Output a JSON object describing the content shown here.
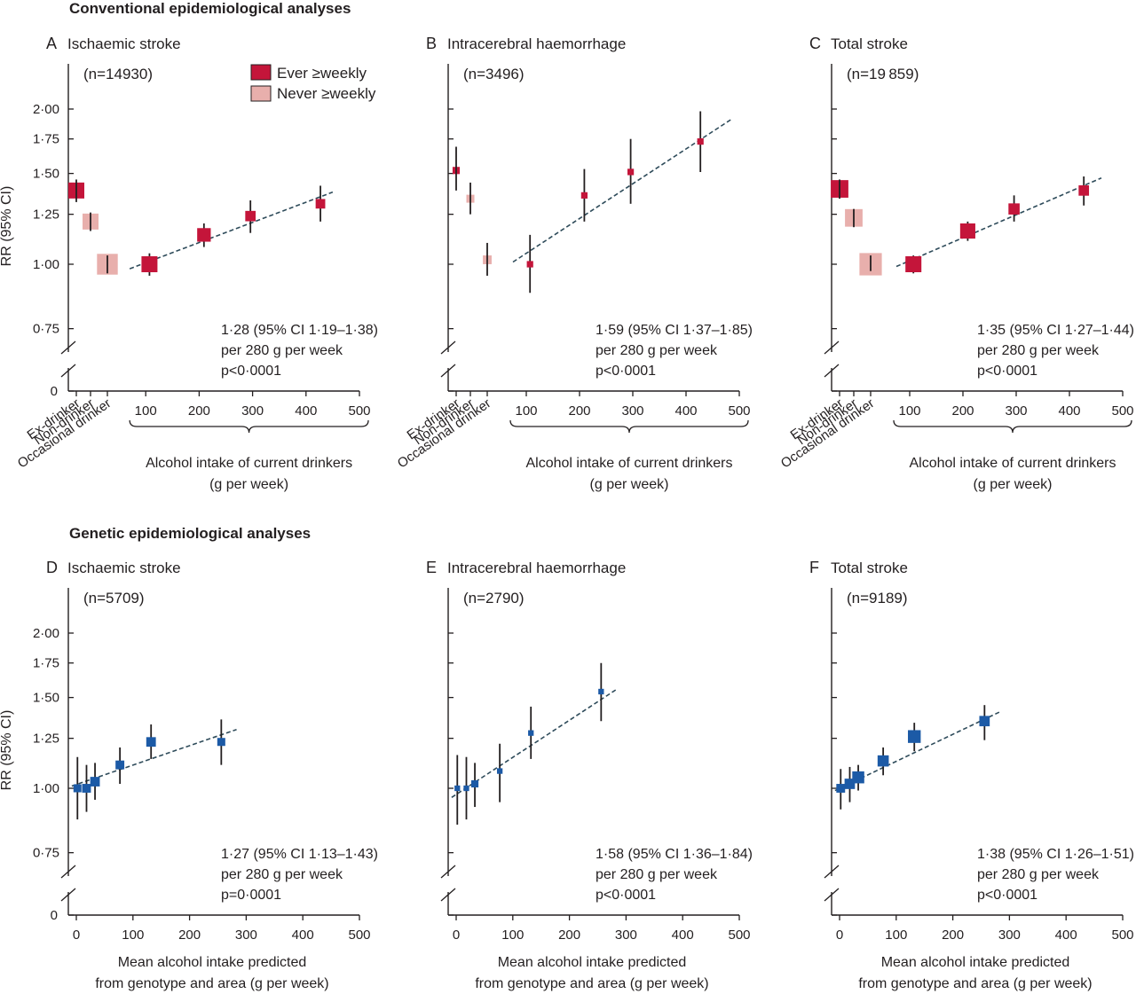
{
  "sections": {
    "top": "Conventional epidemiological analyses",
    "bottom": "Genetic epidemiological analyses"
  },
  "colors": {
    "ever": "#c4153a",
    "never": "#e8afac",
    "genetic": "#1c5aa6",
    "trend": "#2e4b5a",
    "axis": "#231f20"
  },
  "legend": {
    "ever": "Ever ≥weekly",
    "never": "Never ≥weekly"
  },
  "labels": {
    "ylabel": "RR (95% CI)",
    "y_ticks": [
      "2·00",
      "1·75",
      "1·50",
      "1·25",
      "1·00",
      "0·75",
      "0"
    ],
    "x_ticks": [
      "100",
      "200",
      "300",
      "400",
      "500"
    ],
    "x_ticks_gen": [
      "0",
      "100",
      "200",
      "300",
      "400",
      "500"
    ],
    "categories": [
      "Ex-drinker",
      "Non-drinker",
      "Occasional drinker"
    ],
    "xlabel_conv": [
      "Alcohol intake of current drinkers",
      "(g per week)"
    ],
    "xlabel_gen": [
      "Mean alcohol intake predicted",
      "from genotype and area (g per week)"
    ]
  },
  "chart_data": [
    {
      "panel": "A",
      "title": "Ischaemic stroke",
      "n": "(n=14930)",
      "type": "scatter",
      "ylim": [
        0.75,
        2.0
      ],
      "y_scale": "log",
      "xlim": [
        0,
        500
      ],
      "categories": [
        {
          "name": "Ex-drinker",
          "group": "ever",
          "rr": 1.39,
          "lo": 1.32,
          "hi": 1.46,
          "size": 1.0
        },
        {
          "name": "Non-drinker",
          "group": "never",
          "rr": 1.21,
          "lo": 1.16,
          "hi": 1.26,
          "size": 1.0
        },
        {
          "name": "Occasional drinker",
          "group": "never",
          "rr": 1.0,
          "lo": 0.96,
          "hi": 1.04,
          "size": 1.3
        }
      ],
      "points": [
        {
          "x": 107,
          "rr": 1.0,
          "lo": 0.95,
          "hi": 1.05,
          "size": 1.0
        },
        {
          "x": 209,
          "rr": 1.14,
          "lo": 1.08,
          "hi": 1.2,
          "size": 0.85
        },
        {
          "x": 296,
          "rr": 1.24,
          "lo": 1.15,
          "hi": 1.33,
          "size": 0.65
        },
        {
          "x": 427,
          "rr": 1.31,
          "lo": 1.21,
          "hi": 1.42,
          "size": 0.6
        }
      ],
      "trend": {
        "x": [
          70,
          450
        ],
        "rr": [
          0.98,
          1.38
        ]
      },
      "annotation": [
        "1·28 (95% CI 1·19–1·38)",
        "per 280 g per week",
        "p<0·0001"
      ]
    },
    {
      "panel": "B",
      "title": "Intracerebral haemorrhage",
      "n": "(n=3496)",
      "type": "scatter",
      "ylim": [
        0.75,
        2.0
      ],
      "y_scale": "log",
      "xlim": [
        0,
        500
      ],
      "categories": [
        {
          "name": "Ex-drinker",
          "group": "ever",
          "rr": 1.52,
          "lo": 1.39,
          "hi": 1.69,
          "size": 0.45
        },
        {
          "name": "Non-drinker",
          "group": "never",
          "rr": 1.34,
          "lo": 1.25,
          "hi": 1.44,
          "size": 0.5
        },
        {
          "name": "Occasional drinker",
          "group": "never",
          "rr": 1.02,
          "lo": 0.95,
          "hi": 1.1,
          "size": 0.55
        }
      ],
      "points": [
        {
          "x": 107,
          "rr": 1.0,
          "lo": 0.88,
          "hi": 1.14,
          "size": 0.4
        },
        {
          "x": 209,
          "rr": 1.36,
          "lo": 1.21,
          "hi": 1.53,
          "size": 0.4
        },
        {
          "x": 296,
          "rr": 1.51,
          "lo": 1.31,
          "hi": 1.75,
          "size": 0.4
        },
        {
          "x": 427,
          "rr": 1.73,
          "lo": 1.51,
          "hi": 1.98,
          "size": 0.4
        }
      ],
      "trend": {
        "x": [
          75,
          485
        ],
        "rr": [
          1.01,
          1.91
        ]
      },
      "annotation": [
        "1·59 (95% CI 1·37–1·85)",
        "per 280 g per week",
        "p<0·0001"
      ]
    },
    {
      "panel": "C",
      "title": "Total stroke",
      "n": "(n=19 859)",
      "type": "scatter",
      "ylim": [
        0.75,
        2.0
      ],
      "y_scale": "log",
      "xlim": [
        0,
        500
      ],
      "categories": [
        {
          "name": "Ex-drinker",
          "group": "ever",
          "rr": 1.4,
          "lo": 1.34,
          "hi": 1.46,
          "size": 1.1
        },
        {
          "name": "Non-drinker",
          "group": "never",
          "rr": 1.23,
          "lo": 1.18,
          "hi": 1.28,
          "size": 1.1
        },
        {
          "name": "Occasional drinker",
          "group": "never",
          "rr": 1.0,
          "lo": 0.97,
          "hi": 1.04,
          "size": 1.4
        }
      ],
      "points": [
        {
          "x": 107,
          "rr": 1.0,
          "lo": 0.96,
          "hi": 1.04,
          "size": 1.0
        },
        {
          "x": 209,
          "rr": 1.16,
          "lo": 1.11,
          "hi": 1.21,
          "size": 0.95
        },
        {
          "x": 296,
          "rr": 1.28,
          "lo": 1.21,
          "hi": 1.36,
          "size": 0.7
        },
        {
          "x": 427,
          "rr": 1.39,
          "lo": 1.3,
          "hi": 1.48,
          "size": 0.65
        }
      ],
      "trend": {
        "x": [
          75,
          460
        ],
        "rr": [
          0.99,
          1.47
        ]
      },
      "annotation": [
        "1·35 (95% CI 1·27–1·44)",
        "per 280 g per week",
        "p<0·0001"
      ]
    },
    {
      "panel": "D",
      "title": "Ischaemic stroke",
      "n": "(n=5709)",
      "type": "scatter",
      "ylim": [
        0.75,
        2.0
      ],
      "y_scale": "log",
      "xlim": [
        0,
        500
      ],
      "points": [
        {
          "x": 2,
          "rr": 1.0,
          "lo": 0.87,
          "hi": 1.15,
          "size": 0.5
        },
        {
          "x": 18,
          "rr": 1.0,
          "lo": 0.9,
          "hi": 1.11,
          "size": 0.55
        },
        {
          "x": 33,
          "rr": 1.03,
          "lo": 0.95,
          "hi": 1.12,
          "size": 0.6
        },
        {
          "x": 77,
          "rr": 1.11,
          "lo": 1.02,
          "hi": 1.2,
          "size": 0.55
        },
        {
          "x": 132,
          "rr": 1.23,
          "lo": 1.14,
          "hi": 1.33,
          "size": 0.6
        },
        {
          "x": 256,
          "rr": 1.23,
          "lo": 1.11,
          "hi": 1.36,
          "size": 0.5
        }
      ],
      "trend": {
        "x": [
          -8,
          283
        ],
        "rr": [
          1.01,
          1.3
        ]
      },
      "annotation": [
        "1·27 (95% CI 1·13–1·43)",
        "per 280 g per week",
        "p=0·0001"
      ]
    },
    {
      "panel": "E",
      "title": "Intracerebral haemorrhage",
      "n": "(n=2790)",
      "type": "scatter",
      "ylim": [
        0.75,
        2.0
      ],
      "y_scale": "log",
      "xlim": [
        0,
        500
      ],
      "points": [
        {
          "x": 2,
          "rr": 1.0,
          "lo": 0.85,
          "hi": 1.16,
          "size": 0.35
        },
        {
          "x": 18,
          "rr": 1.0,
          "lo": 0.87,
          "hi": 1.15,
          "size": 0.35
        },
        {
          "x": 33,
          "rr": 1.02,
          "lo": 0.92,
          "hi": 1.12,
          "size": 0.45
        },
        {
          "x": 77,
          "rr": 1.08,
          "lo": 0.94,
          "hi": 1.22,
          "size": 0.35
        },
        {
          "x": 132,
          "rr": 1.28,
          "lo": 1.14,
          "hi": 1.44,
          "size": 0.35
        },
        {
          "x": 256,
          "rr": 1.54,
          "lo": 1.35,
          "hi": 1.75,
          "size": 0.35
        }
      ],
      "trend": {
        "x": [
          -8,
          285
        ],
        "rr": [
          0.96,
          1.56
        ]
      },
      "annotation": [
        "1·58 (95% CI 1·36–1·84)",
        "per 280 g per week",
        "p<0·0001"
      ]
    },
    {
      "panel": "F",
      "title": "Total stroke",
      "n": "(n=9189)",
      "type": "scatter",
      "ylim": [
        0.75,
        2.0
      ],
      "y_scale": "log",
      "xlim": [
        0,
        500
      ],
      "points": [
        {
          "x": 2,
          "rr": 1.0,
          "lo": 0.91,
          "hi": 1.09,
          "size": 0.55
        },
        {
          "x": 18,
          "rr": 1.02,
          "lo": 0.94,
          "hi": 1.1,
          "size": 0.65
        },
        {
          "x": 33,
          "rr": 1.05,
          "lo": 0.99,
          "hi": 1.11,
          "size": 0.75
        },
        {
          "x": 77,
          "rr": 1.13,
          "lo": 1.06,
          "hi": 1.2,
          "size": 0.7
        },
        {
          "x": 132,
          "rr": 1.26,
          "lo": 1.18,
          "hi": 1.34,
          "size": 0.8
        },
        {
          "x": 256,
          "rr": 1.35,
          "lo": 1.24,
          "hi": 1.45,
          "size": 0.65
        }
      ],
      "trend": {
        "x": [
          -8,
          285
        ],
        "rr": [
          0.99,
          1.41
        ]
      },
      "annotation": [
        "1·38 (95% CI 1·26–1·51)",
        "per 280 g per week",
        "p<0·0001"
      ]
    }
  ]
}
